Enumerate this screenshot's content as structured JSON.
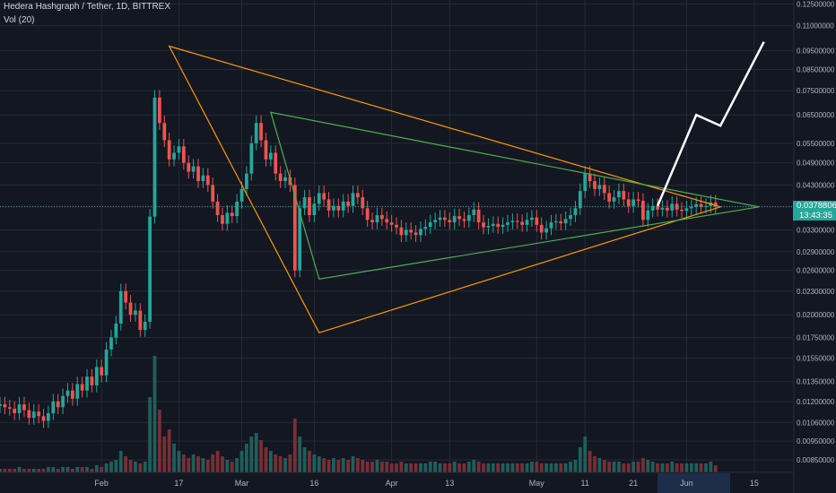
{
  "header": {
    "symbol_line": "Hedera Hashgraph / Tether, 1D, BITTREX",
    "volume_label": "Vol (20)"
  },
  "last_price": {
    "value": "0.03788067",
    "countdown": "13:43:35"
  },
  "colors": {
    "background": "#131722",
    "grid": "#252a36",
    "up": "#26a69a",
    "down": "#ef5350",
    "up_volume": "#1f5f5b",
    "down_volume": "#7a2e35",
    "triangle_outer": "#ff9800",
    "triangle_inner": "#4caf50",
    "projection": "#ffffff",
    "axis_text": "#b2b5be",
    "price_tag": "#26a69a"
  },
  "chart_data": {
    "type": "candlestick",
    "title": "Hedera Hashgraph / Tether, 1D, BITTREX",
    "scale": "log",
    "ylim": [
      0.0079,
      0.128
    ],
    "y_ticks": [
      0.125,
      0.11,
      0.095,
      0.085,
      0.075,
      0.065,
      0.055,
      0.049,
      0.043,
      0.0378,
      0.033,
      0.029,
      0.026,
      0.023,
      0.02,
      0.0175,
      0.0155,
      0.0135,
      0.012,
      0.0106,
      0.0095,
      0.0085
    ],
    "y_tick_labels": [
      "0.12500000",
      "0.11000000",
      "0.09500000",
      "0.08500000",
      "0.07500000",
      "0.06500000",
      "0.05500000",
      "0.04900000",
      "0.04300000",
      "",
      "0.03300000",
      "0.02900000",
      "0.02600000",
      "0.02300000",
      "0.02000000",
      "0.01750000",
      "0.01550000",
      "0.01350000",
      "0.01200000",
      "0.01060000",
      "0.00950000",
      "0.00850000"
    ],
    "x_ticks": [
      {
        "date": "2020-02-01",
        "label": "Feb"
      },
      {
        "date": "2020-02-17",
        "label": "17"
      },
      {
        "date": "2020-03-01",
        "label": "Mar"
      },
      {
        "date": "2020-03-16",
        "label": "16"
      },
      {
        "date": "2020-04-01",
        "label": "Apr"
      },
      {
        "date": "2020-04-13",
        "label": "13"
      },
      {
        "date": "2020-05-01",
        "label": "May"
      },
      {
        "date": "2020-05-11",
        "label": "11"
      },
      {
        "date": "2020-05-21",
        "label": "21"
      },
      {
        "date": "2020-06-01",
        "label": "Jun"
      },
      {
        "date": "2020-06-15",
        "label": "15"
      }
    ],
    "x_range": [
      "2020-01-11",
      "2020-06-23"
    ],
    "last_price": 0.03788067,
    "close": [
      0.0118,
      0.0116,
      0.0115,
      0.0112,
      0.0118,
      0.0114,
      0.0109,
      0.0113,
      0.011,
      0.0107,
      0.0112,
      0.012,
      0.0116,
      0.0124,
      0.0128,
      0.0122,
      0.0133,
      0.0128,
      0.0139,
      0.0132,
      0.0147,
      0.014,
      0.0163,
      0.0175,
      0.019,
      0.023,
      0.0215,
      0.02,
      0.0205,
      0.0183,
      0.0192,
      0.0357,
      0.072,
      0.062,
      0.056,
      0.05,
      0.052,
      0.054,
      0.049,
      0.0465,
      0.048,
      0.044,
      0.0455,
      0.043,
      0.039,
      0.036,
      0.0342,
      0.0365,
      0.0358,
      0.039,
      0.042,
      0.046,
      0.055,
      0.062,
      0.056,
      0.05,
      0.052,
      0.046,
      0.044,
      0.045,
      0.043,
      0.026,
      0.0375,
      0.04,
      0.036,
      0.0385,
      0.041,
      0.0395,
      0.037,
      0.038,
      0.037,
      0.039,
      0.038,
      0.041,
      0.04,
      0.0375,
      0.035,
      0.0345,
      0.036,
      0.0352,
      0.0345,
      0.034,
      0.0335,
      0.032,
      0.033,
      0.0325,
      0.032,
      0.0332,
      0.0336,
      0.0345,
      0.035,
      0.0355,
      0.035,
      0.0345,
      0.0358,
      0.0352,
      0.0348,
      0.036,
      0.0372,
      0.0345,
      0.0335,
      0.0338,
      0.0342,
      0.0336,
      0.034,
      0.0345,
      0.0348,
      0.0346,
      0.034,
      0.035,
      0.0355,
      0.034,
      0.0325,
      0.0333,
      0.0345,
      0.0347,
      0.0343,
      0.0352,
      0.036,
      0.0375,
      0.0415,
      0.046,
      0.044,
      0.042,
      0.043,
      0.041,
      0.039,
      0.04,
      0.0415,
      0.0395,
      0.038,
      0.0395,
      0.0392,
      0.035,
      0.037,
      0.038,
      0.0372,
      0.0376,
      0.037,
      0.0385,
      0.0372,
      0.0369,
      0.0375,
      0.0378,
      0.0384,
      0.0378,
      0.038,
      0.0388,
      0.03788
    ],
    "volume": [
      2,
      2,
      2,
      2,
      3,
      2,
      2,
      2,
      2,
      2,
      3,
      3,
      2,
      3,
      3,
      2,
      3,
      3,
      3,
      2,
      4,
      3,
      5,
      6,
      7,
      12,
      9,
      7,
      6,
      5,
      6,
      42,
      65,
      35,
      20,
      24,
      16,
      12,
      10,
      8,
      10,
      9,
      8,
      7,
      10,
      12,
      9,
      7,
      6,
      8,
      12,
      16,
      20,
      22,
      18,
      14,
      12,
      10,
      9,
      8,
      10,
      30,
      20,
      14,
      12,
      10,
      9,
      8,
      7,
      8,
      7,
      8,
      7,
      9,
      8,
      7,
      6,
      6,
      7,
      6,
      6,
      5,
      5,
      6,
      5,
      5,
      5,
      5,
      5,
      6,
      6,
      5,
      5,
      5,
      6,
      5,
      5,
      6,
      7,
      6,
      5,
      5,
      5,
      5,
      5,
      5,
      5,
      5,
      5,
      5,
      6,
      6,
      5,
      5,
      5,
      5,
      5,
      5,
      6,
      7,
      14,
      20,
      12,
      9,
      8,
      7,
      6,
      6,
      6,
      5,
      5,
      6,
      6,
      8,
      7,
      6,
      5,
      5,
      5,
      6,
      5,
      5,
      5,
      5,
      5,
      5,
      5,
      6,
      4
    ],
    "annotations": {
      "outer_triangle_color": "#ff9800",
      "inner_triangle_color": "#4caf50",
      "projection_color": "#ffffff",
      "outer_triangle": [
        {
          "date": "2020-02-15",
          "price": 0.0975
        },
        {
          "date": "2020-06-08",
          "price": 0.0378
        },
        {
          "date": "2020-03-17",
          "price": 0.018
        }
      ],
      "inner_triangle": [
        {
          "date": "2020-03-07",
          "price": 0.066
        },
        {
          "date": "2020-06-16",
          "price": 0.0378
        },
        {
          "date": "2020-03-17",
          "price": 0.0247
        }
      ],
      "projection": [
        {
          "date": "2020-05-26",
          "price": 0.038
        },
        {
          "date": "2020-06-03",
          "price": 0.065
        },
        {
          "date": "2020-06-08",
          "price": 0.061
        },
        {
          "date": "2020-06-17",
          "price": 0.1
        }
      ]
    }
  }
}
